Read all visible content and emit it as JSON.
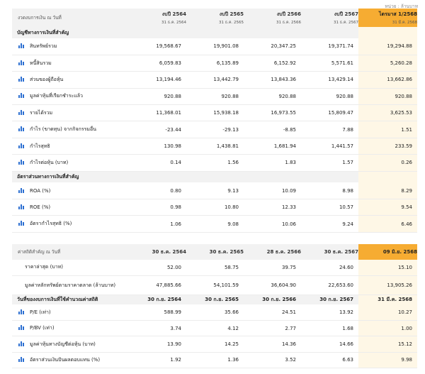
{
  "unit_note": "หน่วย : ล้านบาท",
  "fin_table": {
    "header_label": "งวดงบการเงิน ณ วันที่",
    "periods": [
      {
        "title": "งบปี 2564",
        "date": "31 ธ.ค. 2564"
      },
      {
        "title": "งบปี 2565",
        "date": "31 ธ.ค. 2565"
      },
      {
        "title": "งบปี 2566",
        "date": "31 ธ.ค. 2566"
      },
      {
        "title": "งบปี 2567",
        "date": "31 ธ.ค. 2567"
      },
      {
        "title": "ไตรมาส 1/2568",
        "date": "31 มี.ค. 2568"
      }
    ],
    "section1": "บัญชีทางการเงินที่สำคัญ",
    "rows1": [
      {
        "label": "สินทรัพย์รวม",
        "values": [
          "19,568.67",
          "19,901.08",
          "20,347.25",
          "19,371.74",
          "19,294.88"
        ]
      },
      {
        "label": "หนี้สินรวม",
        "values": [
          "6,059.83",
          "6,135.89",
          "6,152.92",
          "5,571.61",
          "5,260.28"
        ]
      },
      {
        "label": "ส่วนของผู้ถือหุ้น",
        "values": [
          "13,194.46",
          "13,442.79",
          "13,843.36",
          "13,429.14",
          "13,662.86"
        ]
      },
      {
        "label": "มูลค่าหุ้นที่เรียกชำระแล้ว",
        "values": [
          "920.88",
          "920.88",
          "920.88",
          "920.88",
          "920.88"
        ]
      },
      {
        "label": "รายได้รวม",
        "values": [
          "11,368.01",
          "15,938.18",
          "16,973.55",
          "15,809.47",
          "3,625.53"
        ]
      },
      {
        "label": "กำไร (ขาดทุน) จากกิจกรรมอื่น",
        "values": [
          "-23.44",
          "-29.13",
          "-8.85",
          "7.88",
          "1.51"
        ]
      },
      {
        "label": "กำไรสุทธิ",
        "values": [
          "130.98",
          "1,438.81",
          "1,681.94",
          "1,441.57",
          "233.59"
        ]
      },
      {
        "label": "กำไรต่อหุ้น (บาท)",
        "values": [
          "0.14",
          "1.56",
          "1.83",
          "1.57",
          "0.26"
        ]
      }
    ],
    "section2": "อัตราส่วนทางการเงินที่สำคัญ",
    "rows2": [
      {
        "label": "ROA (%)",
        "values": [
          "0.80",
          "9.13",
          "10.09",
          "8.98",
          "8.29"
        ]
      },
      {
        "label": "ROE (%)",
        "values": [
          "0.98",
          "10.80",
          "12.33",
          "10.57",
          "9.54"
        ]
      },
      {
        "label": "อัตรากำไรสุทธิ (%)",
        "values": [
          "1.06",
          "9.08",
          "10.06",
          "9.24",
          "6.46"
        ]
      }
    ]
  },
  "stat_table": {
    "header_label": "ค่าสถิติสำคัญ ณ วันที่",
    "dates": [
      "30 ธ.ค. 2564",
      "30 ธ.ค. 2565",
      "28 ธ.ค. 2566",
      "30 ธ.ค. 2567",
      "09 มิ.ย. 2568"
    ],
    "rows_top": [
      {
        "label": "ราคาล่าสุด (บาท)",
        "values": [
          "52.00",
          "58.75",
          "39.75",
          "24.60",
          "15.10"
        ]
      },
      {
        "label": "มูลค่าหลักทรัพย์ตามราคาตลาด (ล้านบาท)",
        "values": [
          "47,885.66",
          "54,101.59",
          "36,604.90",
          "22,653.60",
          "13,905.26"
        ]
      }
    ],
    "calc_label": "วันที่ของงบการเงินที่ใช้คำนวณค่าสถิติ",
    "calc_dates": [
      "30 ก.ย. 2564",
      "30 ก.ย. 2565",
      "30 ก.ย. 2566",
      "30 ก.ย. 2567",
      "31 มี.ค. 2568"
    ],
    "rows_bottom": [
      {
        "label": "P/E (เท่า)",
        "values": [
          "588.99",
          "35.66",
          "24.51",
          "13.92",
          "10.27"
        ]
      },
      {
        "label": "P/BV (เท่า)",
        "values": [
          "3.74",
          "4.12",
          "2.77",
          "1.68",
          "1.00"
        ]
      },
      {
        "label": "มูลค่าหุ้นทางบัญชีต่อหุ้น (บาท)",
        "values": [
          "13.90",
          "14.25",
          "14.36",
          "14.66",
          "15.12"
        ]
      },
      {
        "label": "อัตราส่วนเงินปันผลตอบแทน (%)",
        "values": [
          "1.92",
          "1.36",
          "3.52",
          "6.63",
          "9.98"
        ]
      }
    ]
  }
}
